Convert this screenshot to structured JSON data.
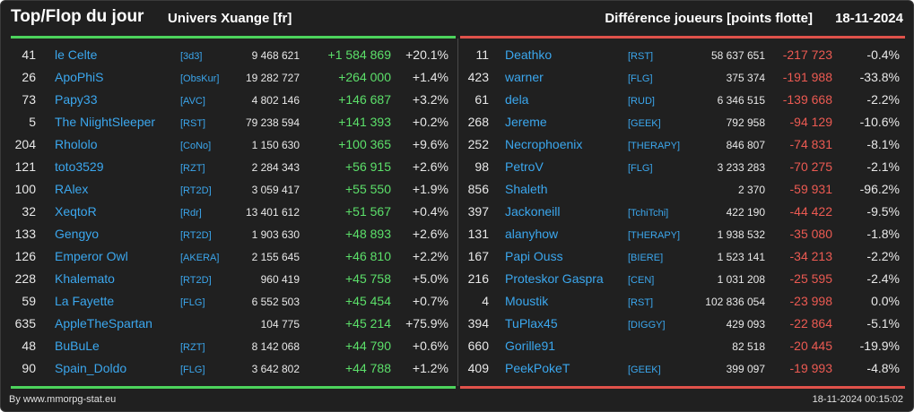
{
  "header": {
    "title": "Top/Flop du jour",
    "universe": "Univers Xuange [fr]",
    "metric": "Différence joueurs [points flotte]",
    "date": "18-11-2024"
  },
  "colors": {
    "top_accent": "#4cd35c",
    "flop_accent": "#e0524a",
    "link": "#3ba7ee"
  },
  "top": [
    {
      "rank": "41",
      "name": "le Celte",
      "tag": "[3d3]",
      "points": "9 468 621",
      "diff": "+1 584 869",
      "pct": "+20.1%"
    },
    {
      "rank": "26",
      "name": "ApoPhiS",
      "tag": "[ObsKur]",
      "points": "19 282 727",
      "diff": "+264 000",
      "pct": "+1.4%"
    },
    {
      "rank": "73",
      "name": "Papy33",
      "tag": "[AVC]",
      "points": "4 802 146",
      "diff": "+146 687",
      "pct": "+3.2%"
    },
    {
      "rank": "5",
      "name": "The NiightSleeper",
      "tag": "[RST]",
      "points": "79 238 594",
      "diff": "+141 393",
      "pct": "+0.2%"
    },
    {
      "rank": "204",
      "name": "Rhololo",
      "tag": "[CoNo]",
      "points": "1 150 630",
      "diff": "+100 365",
      "pct": "+9.6%"
    },
    {
      "rank": "121",
      "name": "toto3529",
      "tag": "[RZT]",
      "points": "2 284 343",
      "diff": "+56 915",
      "pct": "+2.6%"
    },
    {
      "rank": "100",
      "name": "RAlex",
      "tag": "[RT2D]",
      "points": "3 059 417",
      "diff": "+55 550",
      "pct": "+1.9%"
    },
    {
      "rank": "32",
      "name": "XeqtoR",
      "tag": "[Rdr]",
      "points": "13 401 612",
      "diff": "+51 567",
      "pct": "+0.4%"
    },
    {
      "rank": "133",
      "name": "Gengyo",
      "tag": "[RT2D]",
      "points": "1 903 630",
      "diff": "+48 893",
      "pct": "+2.6%"
    },
    {
      "rank": "126",
      "name": "Emperor Owl",
      "tag": "[AKERA]",
      "points": "2 155 645",
      "diff": "+46 810",
      "pct": "+2.2%"
    },
    {
      "rank": "228",
      "name": "Khalemato",
      "tag": "[RT2D]",
      "points": "960 419",
      "diff": "+45 758",
      "pct": "+5.0%"
    },
    {
      "rank": "59",
      "name": "La Fayette",
      "tag": "[FLG]",
      "points": "6 552 503",
      "diff": "+45 454",
      "pct": "+0.7%"
    },
    {
      "rank": "635",
      "name": "AppleTheSpartan",
      "tag": "",
      "points": "104 775",
      "diff": "+45 214",
      "pct": "+75.9%"
    },
    {
      "rank": "48",
      "name": "BuBuLe",
      "tag": "[RZT]",
      "points": "8 142 068",
      "diff": "+44 790",
      "pct": "+0.6%"
    },
    {
      "rank": "90",
      "name": "Spain_Doldo",
      "tag": "[FLG]",
      "points": "3 642 802",
      "diff": "+44 788",
      "pct": "+1.2%"
    }
  ],
  "flop": [
    {
      "rank": "11",
      "name": "Deathko",
      "tag": "[RST]",
      "points": "58 637 651",
      "diff": "-217 723",
      "pct": "-0.4%"
    },
    {
      "rank": "423",
      "name": "warner",
      "tag": "[FLG]",
      "points": "375 374",
      "diff": "-191 988",
      "pct": "-33.8%"
    },
    {
      "rank": "61",
      "name": "dela",
      "tag": "[RUD]",
      "points": "6 346 515",
      "diff": "-139 668",
      "pct": "-2.2%"
    },
    {
      "rank": "268",
      "name": "Jereme",
      "tag": "[GEEK]",
      "points": "792 958",
      "diff": "-94 129",
      "pct": "-10.6%"
    },
    {
      "rank": "252",
      "name": "Necrophoenix",
      "tag": "[THERAPY]",
      "points": "846 807",
      "diff": "-74 831",
      "pct": "-8.1%"
    },
    {
      "rank": "98",
      "name": "PetroV",
      "tag": "[FLG]",
      "points": "3 233 283",
      "diff": "-70 275",
      "pct": "-2.1%"
    },
    {
      "rank": "856",
      "name": "Shaleth",
      "tag": "",
      "points": "2 370",
      "diff": "-59 931",
      "pct": "-96.2%"
    },
    {
      "rank": "397",
      "name": "Jackoneill",
      "tag": "[TchiTchi]",
      "points": "422 190",
      "diff": "-44 422",
      "pct": "-9.5%"
    },
    {
      "rank": "131",
      "name": "alanyhow",
      "tag": "[THERAPY]",
      "points": "1 938 532",
      "diff": "-35 080",
      "pct": "-1.8%"
    },
    {
      "rank": "167",
      "name": "Papi Ouss",
      "tag": "[BIERE]",
      "points": "1 523 141",
      "diff": "-34 213",
      "pct": "-2.2%"
    },
    {
      "rank": "216",
      "name": "Proteskor Gaspra",
      "tag": "[CEN]",
      "points": "1 031 208",
      "diff": "-25 595",
      "pct": "-2.4%"
    },
    {
      "rank": "4",
      "name": "Moustik",
      "tag": "[RST]",
      "points": "102 836 054",
      "diff": "-23 998",
      "pct": "0.0%"
    },
    {
      "rank": "394",
      "name": "TuPlax45",
      "tag": "[DIGGY]",
      "points": "429 093",
      "diff": "-22 864",
      "pct": "-5.1%"
    },
    {
      "rank": "660",
      "name": "Gorille91",
      "tag": "",
      "points": "82 518",
      "diff": "-20 445",
      "pct": "-19.9%"
    },
    {
      "rank": "409",
      "name": "PeekPokeT",
      "tag": "[GEEK]",
      "points": "399 097",
      "diff": "-19 993",
      "pct": "-4.8%"
    }
  ],
  "footer": {
    "credit": "By www.mmorpg-stat.eu",
    "timestamp": "18-11-2024 00:15:02"
  }
}
